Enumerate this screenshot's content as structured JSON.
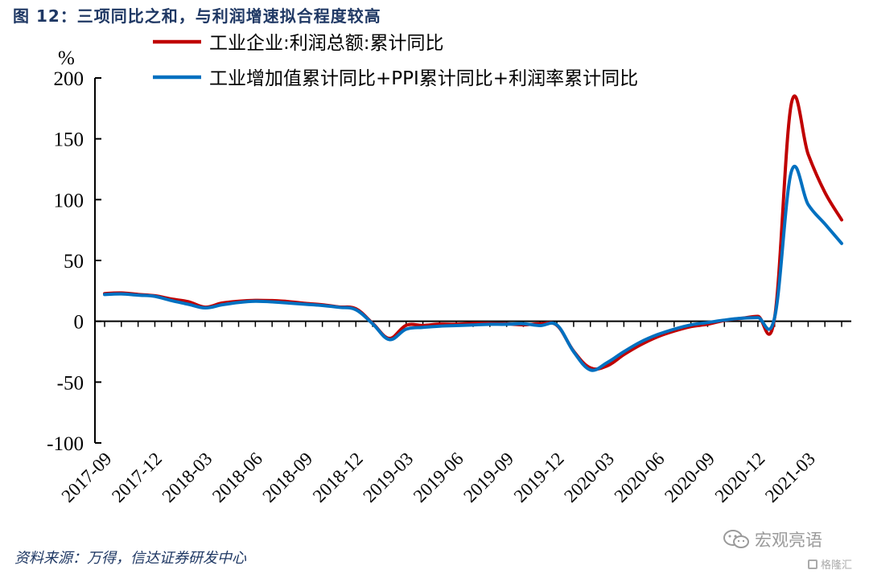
{
  "figure": {
    "title": "图 12：三项同比之和，与利润增速拟合程度较高",
    "source": "资料来源：万得，信达证券研发中心"
  },
  "watermark": {
    "main": "宏观亮语",
    "sub": "格隆汇"
  },
  "chart_data": {
    "type": "line",
    "title": "",
    "ylabel": "%",
    "xlabel": "",
    "ylim": [
      -100,
      200
    ],
    "yticks": [
      -100,
      -50,
      0,
      50,
      100,
      150,
      200
    ],
    "categories": [
      "2017-09",
      "2017-10",
      "2017-11",
      "2017-12",
      "2018-01",
      "2018-02",
      "2018-03",
      "2018-04",
      "2018-05",
      "2018-06",
      "2018-07",
      "2018-08",
      "2018-09",
      "2018-10",
      "2018-11",
      "2018-12",
      "2019-01",
      "2019-02",
      "2019-03",
      "2019-04",
      "2019-05",
      "2019-06",
      "2019-07",
      "2019-08",
      "2019-09",
      "2019-10",
      "2019-11",
      "2019-12",
      "2020-01",
      "2020-02",
      "2020-03",
      "2020-04",
      "2020-05",
      "2020-06",
      "2020-07",
      "2020-08",
      "2020-09",
      "2020-10",
      "2020-11",
      "2020-12",
      "2021-01",
      "2021-02",
      "2021-03",
      "2021-04",
      "2021-05"
    ],
    "x_tick_labels": [
      "2017-09",
      "2017-12",
      "2018-03",
      "2018-06",
      "2018-09",
      "2018-12",
      "2019-03",
      "2019-06",
      "2019-09",
      "2019-12",
      "2020-03",
      "2020-06",
      "2020-09",
      "2020-12",
      "2021-03"
    ],
    "series": [
      {
        "name": "工业企业:利润总额:累计同比",
        "color": "#c00000",
        "values": [
          22.8,
          23.3,
          22.1,
          21.0,
          18.3,
          16.1,
          11.6,
          15.0,
          16.5,
          17.2,
          17.0,
          16.2,
          14.7,
          13.6,
          11.8,
          10.3,
          -1.6,
          -14.0,
          -3.3,
          -3.4,
          -2.3,
          -2.4,
          -1.7,
          -1.7,
          -2.1,
          -2.9,
          -2.1,
          -3.3,
          -24.5,
          -38.3,
          -36.7,
          -27.4,
          -19.3,
          -12.8,
          -8.1,
          -4.4,
          -2.4,
          0.7,
          2.4,
          4.1,
          3.0,
          178.9,
          137.3,
          106.0,
          83.4
        ]
      },
      {
        "name": "工业增加值累计同比+PPI累计同比+利润率累计同比",
        "color": "#0070c0",
        "values": [
          22.0,
          22.5,
          21.5,
          20.5,
          17.0,
          14.0,
          11.0,
          13.5,
          15.5,
          16.5,
          16.0,
          15.0,
          14.0,
          13.0,
          11.5,
          9.5,
          -2.0,
          -15.0,
          -6.5,
          -5.0,
          -4.0,
          -3.5,
          -3.0,
          -2.5,
          -2.5,
          -2.0,
          -3.5,
          -3.0,
          -25.0,
          -40.0,
          -34.0,
          -25.0,
          -17.0,
          -11.0,
          -6.5,
          -3.0,
          -1.0,
          1.0,
          2.5,
          3.0,
          3.0,
          123.0,
          96.0,
          80.0,
          64.0
        ]
      }
    ]
  }
}
